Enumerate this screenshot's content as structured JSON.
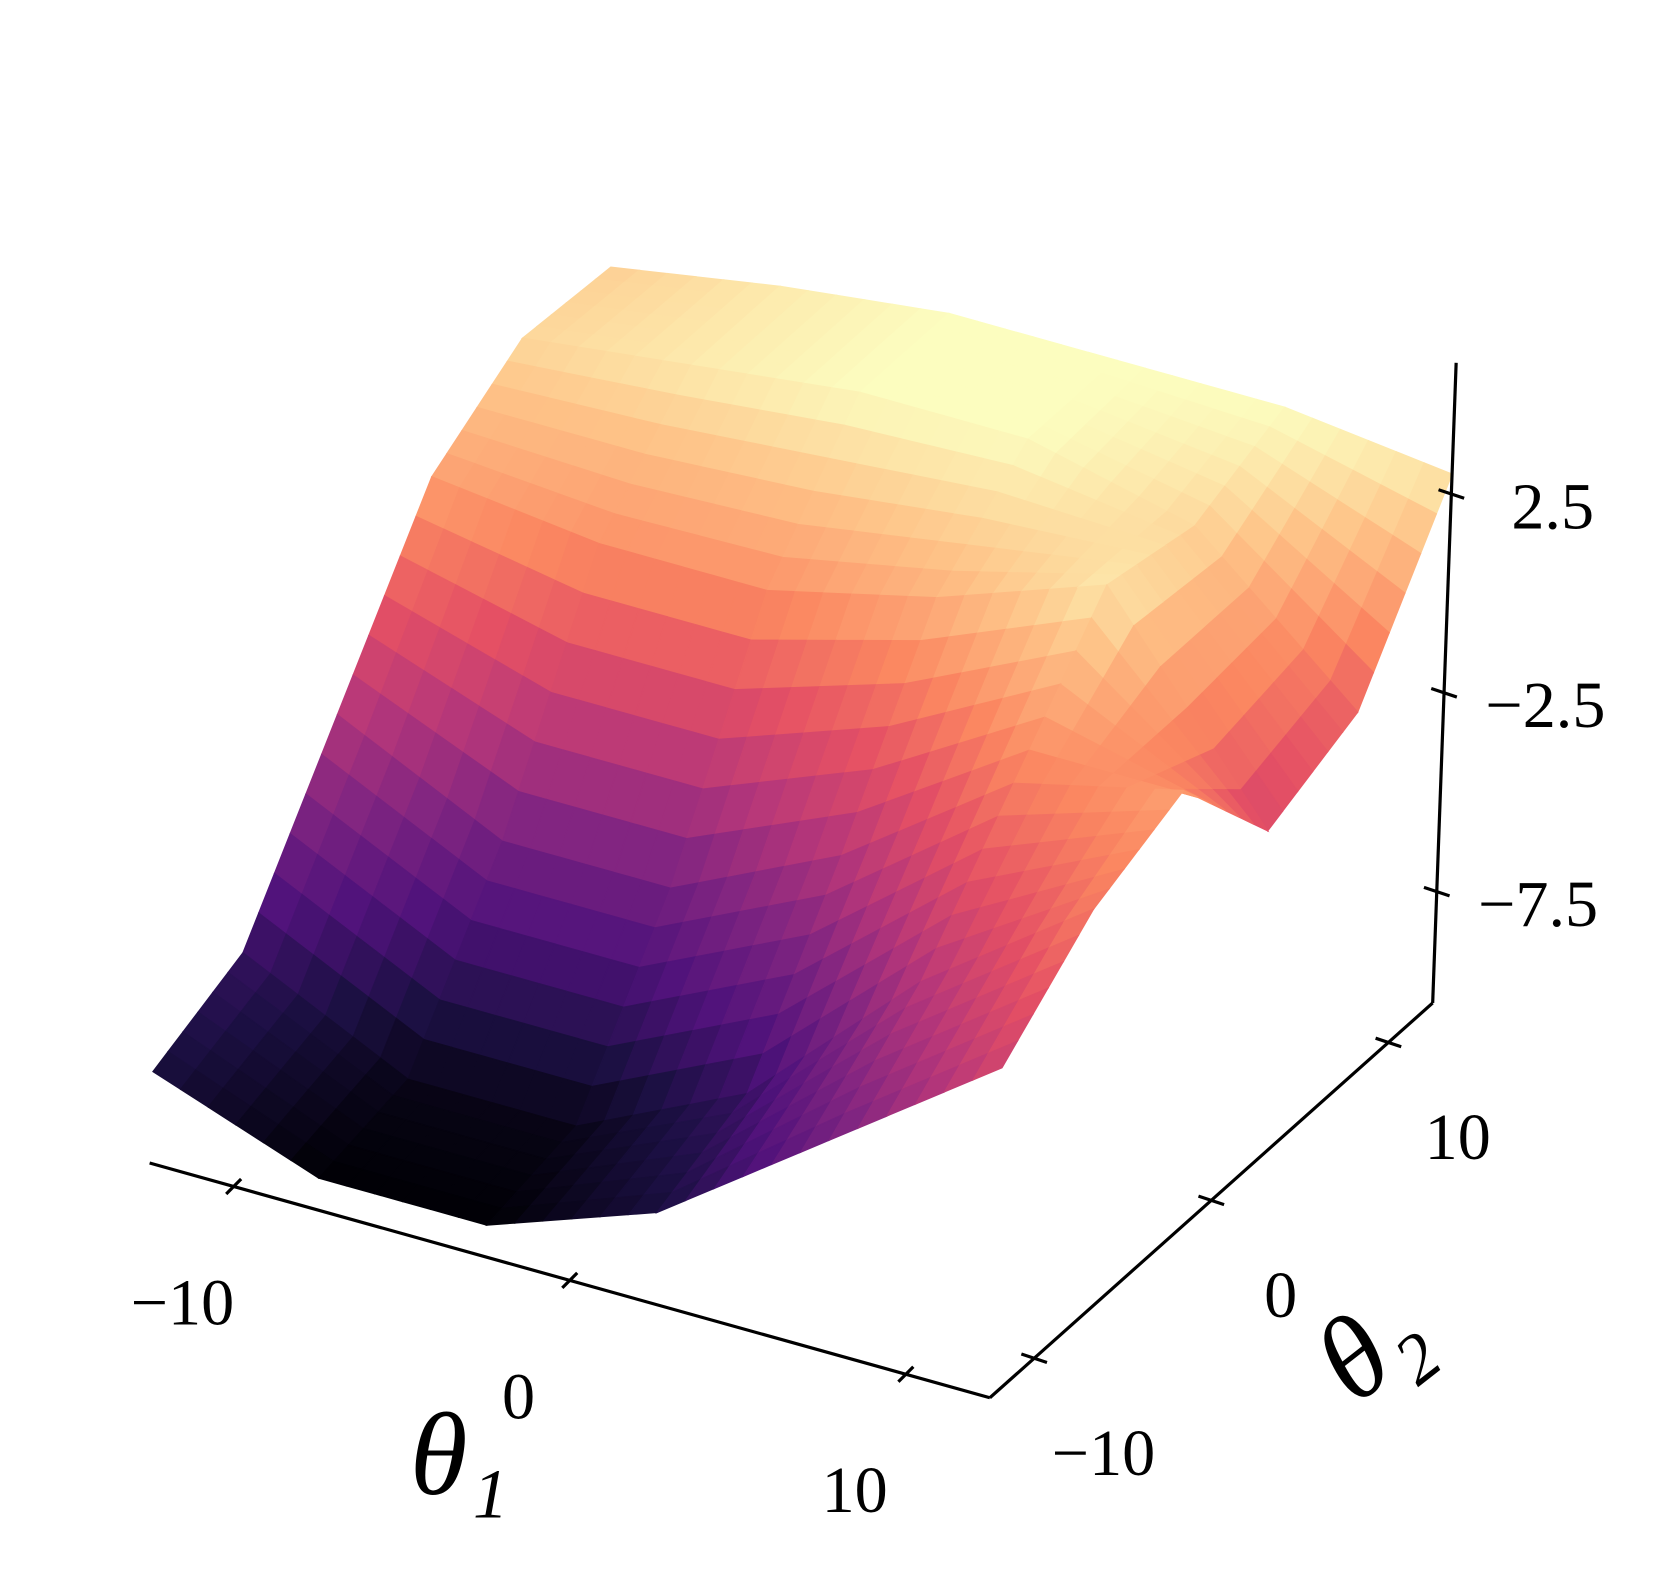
{
  "chart_data": {
    "type": "surface3d",
    "xlabel": "θ₁",
    "ylabel": "θ₂",
    "colormap": "magma",
    "x": [
      -12.5,
      -7.5,
      -2.5,
      2.5,
      7.5,
      12.5
    ],
    "y": [
      -12.5,
      -7.5,
      -2.5,
      2.5,
      7.5,
      12.5
    ],
    "z": [
      [
        -8,
        -9.5,
        -9.5,
        -8,
        -5,
        -2
      ],
      [
        -7,
        -9,
        -9,
        -7,
        -3,
        0
      ],
      [
        -3,
        -5,
        -5,
        -3,
        0,
        1
      ],
      [
        1,
        0.5,
        0.5,
        1.5,
        3,
        -2
      ],
      [
        2.5,
        3,
        3.5,
        3.5,
        2.5,
        -1
      ],
      [
        2.3,
        3,
        3.5,
        3.5,
        3.5,
        3
      ]
    ],
    "xlim": [
      -12.5,
      12.5
    ],
    "ylim": [
      -12.5,
      12.5
    ],
    "zlim": [
      -10.3,
      5.8
    ],
    "xticks": [
      {
        "value": -10,
        "label": "−10"
      },
      0,
      10
    ],
    "yticks": [
      {
        "value": -10,
        "label": "−10"
      },
      0,
      10
    ],
    "zticks": [
      {
        "value": -7.5,
        "label": "−7.5"
      },
      {
        "value": -2.5,
        "label": "−2.5"
      },
      2.5
    ]
  }
}
